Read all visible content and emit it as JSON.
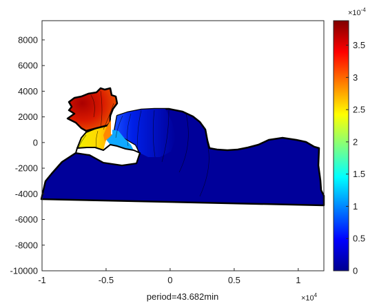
{
  "chart_data": {
    "type": "heatmap",
    "title": "",
    "xlabel": "period=43.682min",
    "ylabel": "",
    "xlim": [
      -1.0,
      1.2
    ],
    "ylim": [
      -10000,
      9500
    ],
    "x_multiplier_label": "×10",
    "x_multiplier_exp": "4",
    "x_ticks": [
      -1,
      -0.5,
      0,
      0.5,
      1
    ],
    "x_tick_labels": [
      "-1",
      "-0.5",
      "0",
      "0.5",
      "1"
    ],
    "y_ticks": [
      8000,
      6000,
      4000,
      2000,
      0,
      -2000,
      -4000,
      -6000,
      -8000,
      -10000
    ],
    "y_tick_labels": [
      "8000",
      "6000",
      "4000",
      "2000",
      "0",
      "-2000",
      "-4000",
      "-6000",
      "-8000",
      "-10000"
    ],
    "colorbar": {
      "colormap": "jet",
      "range": [
        0,
        3.88
      ],
      "multiplier_label": "×10",
      "multiplier_exp": "-4",
      "ticks": [
        0,
        0.5,
        1,
        1.5,
        2,
        2.5,
        3,
        3.5
      ],
      "tick_labels": [
        "0",
        "0.5",
        "1",
        "1.5",
        "2",
        "2.5",
        "3",
        "3.5"
      ]
    },
    "field_samples": [
      {
        "x": -0.75,
        "y": 2800,
        "value": 3.7
      },
      {
        "x": -0.55,
        "y": 2000,
        "value": 3.0
      },
      {
        "x": -0.62,
        "y": 600,
        "value": 2.3
      },
      {
        "x": -0.5,
        "y": 300,
        "value": 2.0
      },
      {
        "x": -0.45,
        "y": 800,
        "value": 1.0
      },
      {
        "x": -0.3,
        "y": 1000,
        "value": 0.4
      },
      {
        "x": 0.0,
        "y": 500,
        "value": 0.15
      },
      {
        "x": 0.5,
        "y": -2000,
        "value": 0.05
      },
      {
        "x": 1.0,
        "y": -3000,
        "value": 0.05
      }
    ]
  }
}
